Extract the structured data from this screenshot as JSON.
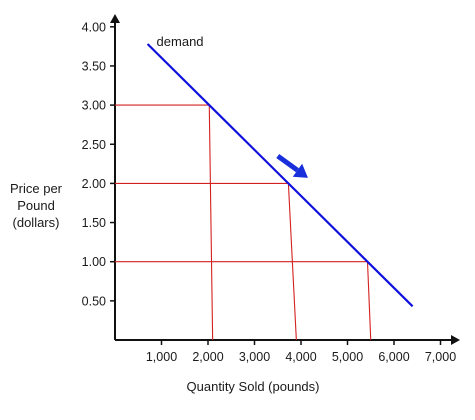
{
  "chart_data": {
    "type": "line",
    "title": "",
    "xlabel": "Quantity Sold (pounds)",
    "ylabel": [
      "Price per",
      "Pound",
      "(dollars)"
    ],
    "xlim": [
      0,
      7300
    ],
    "ylim": [
      0,
      4.15
    ],
    "x_ticks": [
      1000,
      2000,
      3000,
      4000,
      5000,
      6000,
      7000
    ],
    "x_tick_labels": [
      "1,000",
      "2,000",
      "3,000",
      "4,000",
      "5,000",
      "6,000",
      "7,000"
    ],
    "y_ticks": [
      0.5,
      1.0,
      1.5,
      2.0,
      2.5,
      3.0,
      3.5,
      4.0
    ],
    "y_tick_labels": [
      "0.50",
      "1.00",
      "1.50",
      "2.00",
      "2.50",
      "3.00",
      "3.50",
      "4.00"
    ],
    "grid": false,
    "series": [
      {
        "name": "demand",
        "x": [
          700,
          6400
        ],
        "y": [
          3.78,
          0.43
        ],
        "color": "#1010dd"
      }
    ],
    "reference_points": [
      {
        "price": 3.0,
        "quantity": 2100
      },
      {
        "price": 2.0,
        "quantity": 3900
      },
      {
        "price": 1.0,
        "quantity": 5500
      }
    ],
    "reference_line_color": "#d42020",
    "annotation": {
      "type": "arrow",
      "direction": "down-right",
      "color": "#1a2fdc",
      "from": {
        "x": 3500,
        "y": 2.35
      },
      "to": {
        "x": 4150,
        "y": 2.07
      }
    }
  }
}
